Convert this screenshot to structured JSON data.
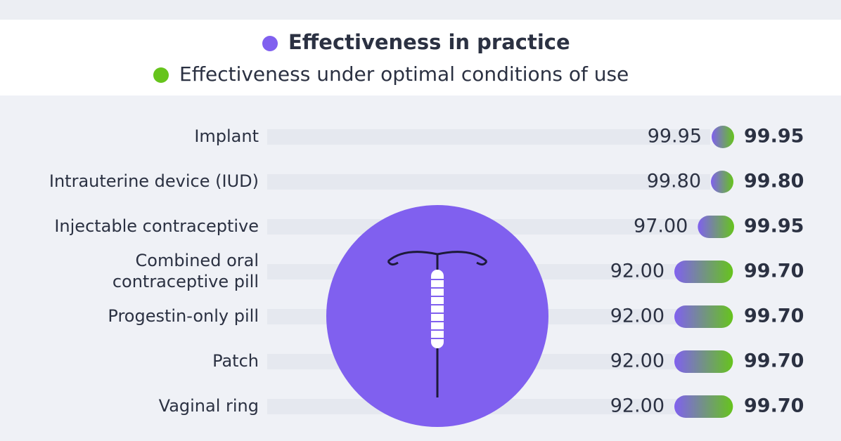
{
  "chart_data": {
    "type": "dumbbell",
    "categories": [
      "Implant",
      "Intrauterine device (IUD)",
      "Injectable contraceptive",
      "Combined oral\ncontraceptive pill",
      "Progestin-only pill",
      "Patch",
      "Vaginal ring"
    ],
    "series": [
      {
        "name": "Effectiveness in practice",
        "color": "#8060ef",
        "values": [
          99.95,
          99.8,
          97,
          92,
          92,
          92,
          92
        ],
        "value_labels": [
          "99.95",
          "99.80",
          "97.00",
          "92.00",
          "92.00",
          "92.00",
          "92.00"
        ]
      },
      {
        "name": "Effectiveness under optimal conditions of use",
        "color": "#66c41c",
        "values": [
          99.95,
          99.8,
          99.95,
          99.7,
          99.7,
          99.7,
          99.7
        ],
        "value_labels": [
          "99.95",
          "99.80",
          "99.95",
          "99.70",
          "99.70",
          "99.70",
          "99.70"
        ]
      }
    ]
  }
}
